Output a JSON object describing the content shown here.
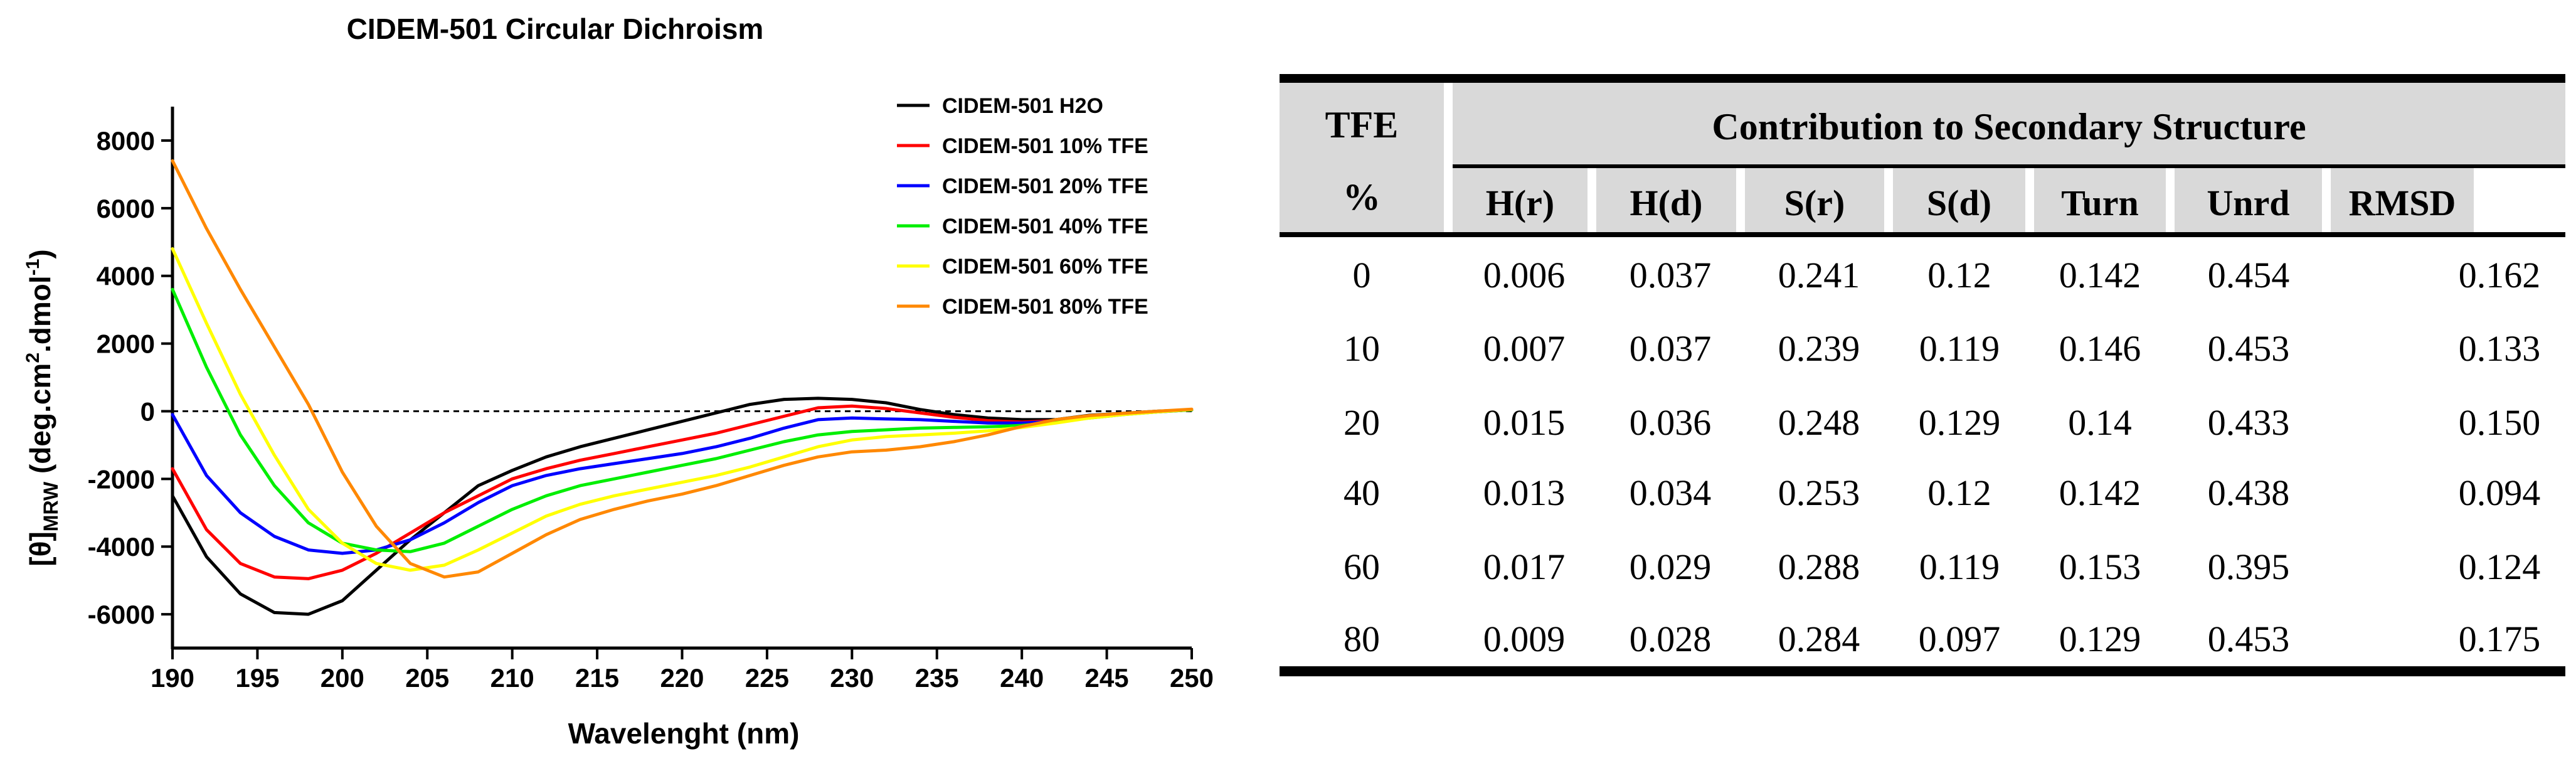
{
  "chart_data": {
    "type": "line",
    "title": "CIDEM-501 Circular Dichroism",
    "xlabel": "Wavelenght (nm)",
    "ylabel_main": "[θ]",
    "ylabel_sub": "MRW",
    "ylabel_rest": " (deg.cm",
    "ylabel_sup1": "2",
    "ylabel_mid": ".dmol",
    "ylabel_sup2": "-1",
    "ylabel_end": ")",
    "xlim": [
      190,
      250
    ],
    "ylim": [
      -7000,
      9000
    ],
    "xticks": [
      190,
      195,
      200,
      205,
      210,
      215,
      220,
      225,
      230,
      235,
      240,
      245,
      250
    ],
    "yticks": [
      -6000,
      -4000,
      -2000,
      0,
      2000,
      4000,
      6000,
      8000
    ],
    "zero_line": "dashed",
    "legend_position": "top-right",
    "x": [
      190,
      192,
      194,
      196,
      198,
      200,
      202,
      204,
      206,
      208,
      210,
      212,
      214,
      216,
      218,
      220,
      222,
      224,
      226,
      228,
      230,
      232,
      234,
      236,
      238,
      240,
      242,
      244,
      246,
      248,
      250
    ],
    "series": [
      {
        "name": "CIDEM-501 H2O",
        "color": "#000000",
        "values": [
          -2500,
          -4300,
          -5400,
          -5950,
          -6000,
          -5600,
          -4700,
          -3800,
          -3000,
          -2200,
          -1750,
          -1350,
          -1050,
          -800,
          -550,
          -300,
          -50,
          200,
          350,
          380,
          350,
          250,
          50,
          -100,
          -200,
          -250,
          -250,
          -120,
          -60,
          0,
          40
        ]
      },
      {
        "name": "CIDEM-501 10% TFE",
        "color": "#ff0000",
        "values": [
          -1700,
          -3500,
          -4500,
          -4900,
          -4950,
          -4700,
          -4200,
          -3600,
          -3000,
          -2500,
          -2000,
          -1700,
          -1450,
          -1250,
          -1050,
          -850,
          -650,
          -400,
          -150,
          100,
          150,
          80,
          -50,
          -180,
          -280,
          -320,
          -280,
          -160,
          -80,
          -10,
          40
        ]
      },
      {
        "name": "CIDEM-501 20% TFE",
        "color": "#0000ff",
        "values": [
          -100,
          -1900,
          -3000,
          -3700,
          -4100,
          -4200,
          -4100,
          -3800,
          -3300,
          -2700,
          -2200,
          -1900,
          -1700,
          -1550,
          -1400,
          -1250,
          -1050,
          -800,
          -500,
          -250,
          -200,
          -230,
          -250,
          -300,
          -350,
          -350,
          -300,
          -180,
          -90,
          -20,
          40
        ]
      },
      {
        "name": "CIDEM-501 40% TFE",
        "color": "#00ee00",
        "values": [
          3600,
          1300,
          -700,
          -2200,
          -3300,
          -3900,
          -4100,
          -4150,
          -3900,
          -3400,
          -2900,
          -2500,
          -2200,
          -2000,
          -1800,
          -1600,
          -1400,
          -1150,
          -900,
          -700,
          -600,
          -550,
          -500,
          -480,
          -460,
          -420,
          -330,
          -200,
          -100,
          -20,
          40
        ]
      },
      {
        "name": "CIDEM-501 60% TFE",
        "color": "#ffff00",
        "values": [
          4800,
          2600,
          500,
          -1300,
          -2900,
          -3900,
          -4500,
          -4700,
          -4550,
          -4100,
          -3600,
          -3100,
          -2750,
          -2500,
          -2300,
          -2100,
          -1900,
          -1650,
          -1350,
          -1050,
          -850,
          -750,
          -700,
          -650,
          -580,
          -480,
          -350,
          -200,
          -100,
          -20,
          50
        ]
      },
      {
        "name": "CIDEM-501 80% TFE",
        "color": "#ff8800",
        "values": [
          7400,
          5400,
          3600,
          1900,
          200,
          -1800,
          -3400,
          -4500,
          -4900,
          -4750,
          -4200,
          -3650,
          -3200,
          -2900,
          -2650,
          -2450,
          -2200,
          -1900,
          -1600,
          -1350,
          -1200,
          -1150,
          -1050,
          -900,
          -700,
          -450,
          -250,
          -130,
          -60,
          0,
          60
        ]
      }
    ]
  },
  "table": {
    "corner_top": "TFE",
    "corner_bottom": "%",
    "group_header": "Contribution to Secondary Structure",
    "columns": [
      "H(r)",
      "H(d)",
      "S(r)",
      "S(d)",
      "Turn",
      "Unrd",
      "RMSD"
    ],
    "rows": [
      [
        "0",
        "0.006",
        "0.037",
        "0.241",
        "0.12",
        "0.142",
        "0.454",
        "0.162"
      ],
      [
        "10",
        "0.007",
        "0.037",
        "0.239",
        "0.119",
        "0.146",
        "0.453",
        "0.133"
      ],
      [
        "20",
        "0.015",
        "0.036",
        "0.248",
        "0.129",
        "0.14",
        "0.433",
        "0.150"
      ],
      [
        "40",
        "0.013",
        "0.034",
        "0.253",
        "0.12",
        "0.142",
        "0.438",
        "0.094"
      ],
      [
        "60",
        "0.017",
        "0.029",
        "0.288",
        "0.119",
        "0.153",
        "0.395",
        "0.124"
      ],
      [
        "80",
        "0.009",
        "0.028",
        "0.284",
        "0.097",
        "0.129",
        "0.453",
        "0.175"
      ]
    ]
  }
}
